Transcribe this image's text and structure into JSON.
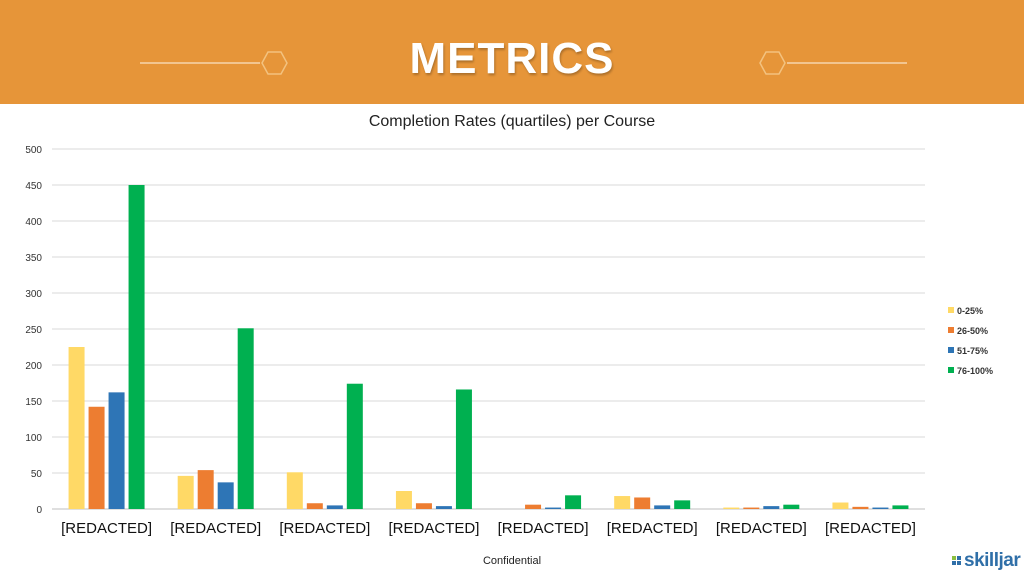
{
  "header": {
    "title": "METRICS"
  },
  "chart_data": {
    "type": "bar",
    "title": "Completion Rates (quartiles) per Course",
    "xlabel": "",
    "ylabel": "",
    "ylim": [
      0,
      500
    ],
    "yticks": [
      0,
      50,
      100,
      150,
      200,
      250,
      300,
      350,
      400,
      450,
      500
    ],
    "grid": true,
    "legend_position": "right",
    "categories": [
      "[REDACTED]",
      "[REDACTED]",
      "[REDACTED]",
      "[REDACTED]",
      "[REDACTED]",
      "[REDACTED]",
      "[REDACTED]",
      "[REDACTED]"
    ],
    "series": [
      {
        "name": "0-25%",
        "color": "#FFD966",
        "values": [
          225,
          46,
          51,
          25,
          0,
          18,
          2,
          9
        ]
      },
      {
        "name": "26-50%",
        "color": "#ED7D31",
        "values": [
          142,
          54,
          8,
          8,
          6,
          16,
          2,
          3
        ]
      },
      {
        "name": "51-75%",
        "color": "#2E75B6",
        "values": [
          162,
          37,
          5,
          4,
          2,
          5,
          4,
          2
        ]
      },
      {
        "name": "76-100%",
        "color": "#00B050",
        "values": [
          450,
          251,
          174,
          166,
          19,
          12,
          6,
          5
        ]
      }
    ]
  },
  "footer": {
    "confidential": "Confidential",
    "brand": "skilljar",
    "brand_color": "#2F6FA8"
  },
  "colors": {
    "banner": "#E69539"
  }
}
